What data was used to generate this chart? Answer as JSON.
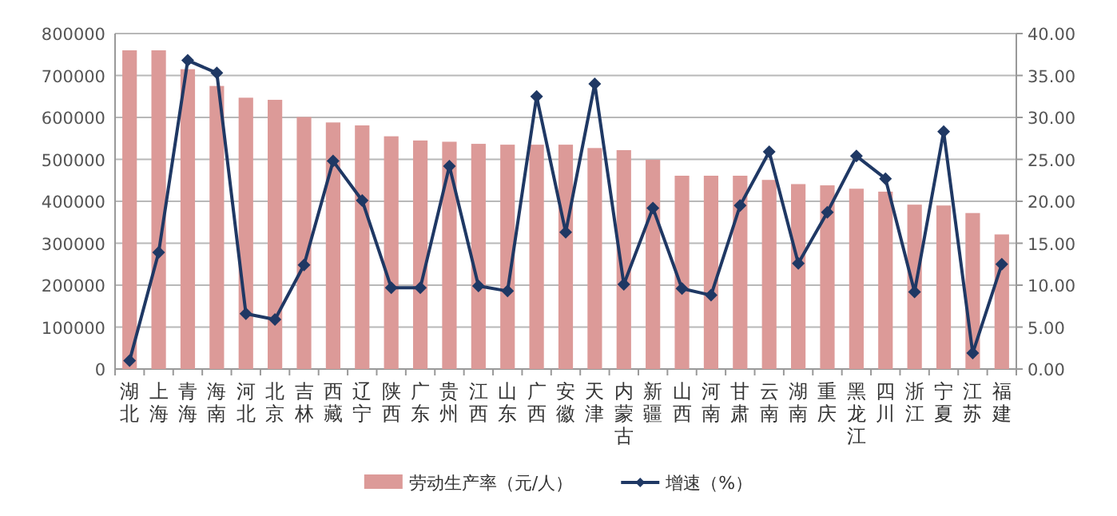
{
  "chart_data": {
    "type": "bar",
    "categories": [
      "湖北",
      "上海",
      "青海",
      "海南",
      "河北",
      "北京",
      "吉林",
      "西藏",
      "辽宁",
      "陕西",
      "广东",
      "贵州",
      "江西",
      "山东",
      "广西",
      "安徽",
      "天津",
      "内蒙古",
      "新疆",
      "山西",
      "河南",
      "甘肃",
      "云南",
      "湖南",
      "重庆",
      "黑龙江",
      "四川",
      "浙江",
      "宁夏",
      "江苏",
      "福建"
    ],
    "series": [
      {
        "name": "劳动生产率（元/人）",
        "color": "#dc9a98",
        "values": [
          760000,
          760000,
          715000,
          675000,
          647000,
          642000,
          601000,
          588000,
          581000,
          555000,
          545000,
          542000,
          537000,
          535000,
          535000,
          535000,
          527000,
          522000,
          499000,
          461000,
          461000,
          461000,
          451000,
          441000,
          438000,
          430000,
          423000,
          392000,
          390000,
          372000,
          321000
        ]
      },
      {
        "name": "增速（%）",
        "type": "line",
        "axis": "y2",
        "color": "#1f3864",
        "marker": "diamond",
        "values": [
          1.0,
          13.9,
          36.8,
          35.3,
          6.6,
          5.9,
          12.4,
          24.8,
          20.1,
          9.7,
          9.7,
          24.2,
          9.9,
          9.3,
          32.5,
          16.3,
          34.0,
          10.1,
          19.2,
          9.6,
          8.8,
          19.5,
          25.9,
          12.6,
          18.7,
          25.4,
          22.7,
          9.2,
          28.3,
          1.9,
          12.5
        ]
      }
    ],
    "ylim": [
      0,
      800000
    ],
    "yticks": [
      0,
      100000,
      200000,
      300000,
      400000,
      500000,
      600000,
      700000,
      800000
    ],
    "y2lim": [
      0,
      40
    ],
    "y2ticks": [
      {
        "value": 0,
        "label": "0.00"
      },
      {
        "value": 5,
        "label": "5.00"
      },
      {
        "value": 10,
        "label": "10.00"
      },
      {
        "value": 15,
        "label": "15.00"
      },
      {
        "value": 20,
        "label": "20.00"
      },
      {
        "value": 25,
        "label": "25.00"
      },
      {
        "value": 30,
        "label": "30.00"
      },
      {
        "value": 35,
        "label": "35.00"
      },
      {
        "value": 40,
        "label": "40.00"
      }
    ],
    "grid": "y",
    "legend": "bottom"
  }
}
